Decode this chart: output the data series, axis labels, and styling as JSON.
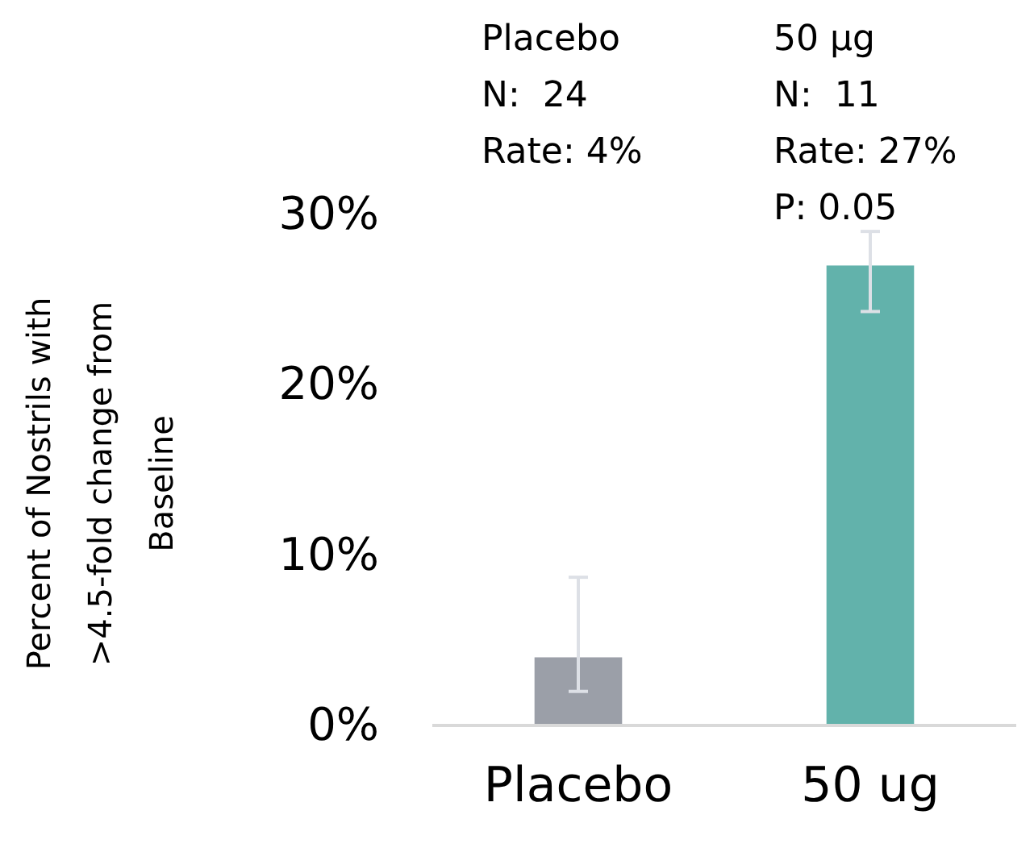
{
  "chart_data": {
    "type": "bar",
    "ylabel": "Percent of Nostrils with\n>4.5-fold change from\nBaseline",
    "categories": [
      "Placebo",
      "50 ug"
    ],
    "values": [
      4,
      27
    ],
    "colors": [
      "#9b9fa8",
      "#62b2ab"
    ],
    "errors": [
      [
        2,
        8.7
      ],
      [
        24.3,
        29
      ]
    ],
    "ylim": [
      0,
      30
    ],
    "yticks": [
      {
        "value": 0,
        "label": "0%"
      },
      {
        "value": 10,
        "label": "10%"
      },
      {
        "value": 20,
        "label": "20%"
      },
      {
        "value": 30,
        "label": "30%"
      }
    ],
    "grid": false,
    "annotations": [
      "Placebo\nN:  24\nRate: 4%",
      "50 µg\nN:  11\nRate: 27%\nP: 0.05"
    ]
  }
}
